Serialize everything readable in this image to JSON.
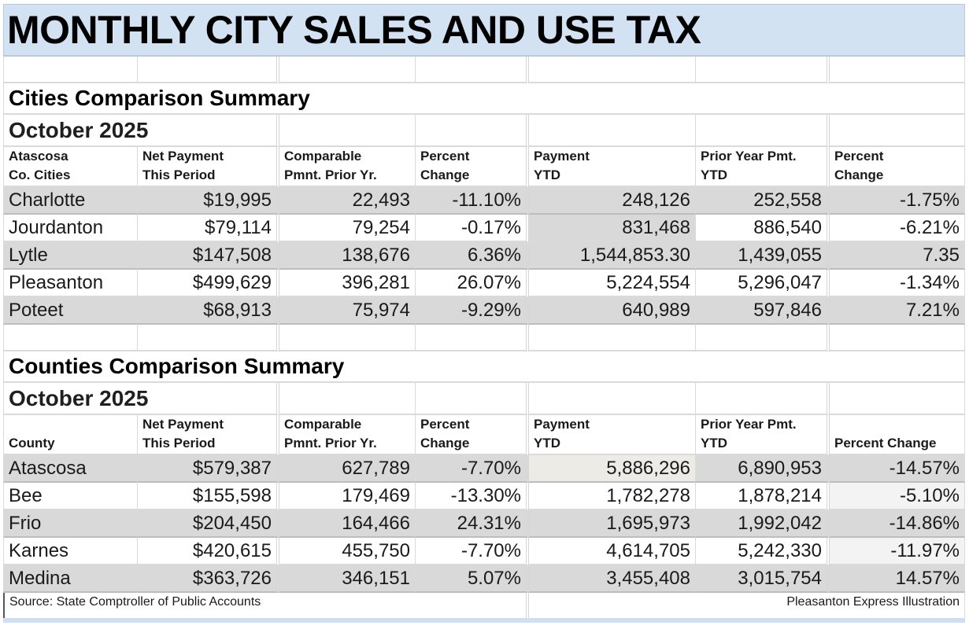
{
  "title": "MONTHLY CITY SALES AND USE TAX",
  "cities": {
    "section_title": "Cities Comparison Summary",
    "period": "October 2025",
    "headers": [
      {
        "line1": "Atascosa",
        "line2": "Co. Cities"
      },
      {
        "line1": "Net Payment",
        "line2": "This Period"
      },
      {
        "line1": "Comparable",
        "line2": "Pmnt. Prior Yr."
      },
      {
        "line1": "Percent",
        "line2": "Change"
      },
      {
        "line1": "Payment",
        "line2": "YTD"
      },
      {
        "line1": "Prior Year Pmt.",
        "line2": "YTD"
      },
      {
        "line1": "Percent",
        "line2": "Change"
      }
    ],
    "rows": [
      {
        "name": "Charlotte",
        "net_payment": "$19,995",
        "prior_payment": "22,493",
        "pct_change": "-11.10%",
        "ytd": "248,126",
        "prior_ytd": "252,558",
        "ytd_pct_change": "-1.75%"
      },
      {
        "name": "Jourdanton",
        "net_payment": "$79,114",
        "prior_payment": "79,254",
        "pct_change": "-0.17%",
        "ytd": "831,468",
        "prior_ytd": "886,540",
        "ytd_pct_change": "-6.21%"
      },
      {
        "name": "Lytle",
        "net_payment": "$147,508",
        "prior_payment": "138,676",
        "pct_change": "6.36%",
        "ytd": "1,544,853.30",
        "prior_ytd": "1,439,055",
        "ytd_pct_change": "7.35"
      },
      {
        "name": "Pleasanton",
        "net_payment": "$499,629",
        "prior_payment": "396,281",
        "pct_change": "26.07%",
        "ytd": "5,224,554",
        "prior_ytd": "5,296,047",
        "ytd_pct_change": "-1.34%"
      },
      {
        "name": "Poteet",
        "net_payment": "$68,913",
        "prior_payment": "75,974",
        "pct_change": "-9.29%",
        "ytd": "640,989",
        "prior_ytd": "597,846",
        "ytd_pct_change": "7.21%"
      }
    ]
  },
  "counties": {
    "section_title": "Counties Comparison Summary",
    "period": "October 2025",
    "headers": [
      {
        "line1": "",
        "line2": "County"
      },
      {
        "line1": "Net Payment",
        "line2": "This Period"
      },
      {
        "line1": "Comparable",
        "line2": "Pmnt. Prior Yr."
      },
      {
        "line1": "Percent",
        "line2": "Change"
      },
      {
        "line1": "Payment",
        "line2": "YTD"
      },
      {
        "line1": "Prior Year Pmt.",
        "line2": "YTD"
      },
      {
        "line1": "",
        "line2": "Percent Change"
      }
    ],
    "rows": [
      {
        "name": "Atascosa",
        "net_payment": "$579,387",
        "prior_payment": "627,789",
        "pct_change": "-7.70%",
        "ytd": "5,886,296",
        "prior_ytd": "6,890,953",
        "ytd_pct_change": "-14.57%"
      },
      {
        "name": "Bee",
        "net_payment": "$155,598",
        "prior_payment": "179,469",
        "pct_change": "-13.30%",
        "ytd": "1,782,278",
        "prior_ytd": "1,878,214",
        "ytd_pct_change": "-5.10%"
      },
      {
        "name": "Frio",
        "net_payment": "$204,450",
        "prior_payment": "164,466",
        "pct_change": "24.31%",
        "ytd": "1,695,973",
        "prior_ytd": "1,992,042",
        "ytd_pct_change": "-14.86%"
      },
      {
        "name": "Karnes",
        "net_payment": "$420,615",
        "prior_payment": "455,750",
        "pct_change": "-7.70%",
        "ytd": "4,614,705",
        "prior_ytd": "5,242,330",
        "ytd_pct_change": "-11.97%"
      },
      {
        "name": "Medina",
        "net_payment": "$363,726",
        "prior_payment": "346,151",
        "pct_change": "5.07%",
        "ytd": "3,455,408",
        "prior_ytd": "3,015,754",
        "ytd_pct_change": "14.57%"
      }
    ]
  },
  "footer": {
    "source": "Source: State Comptroller of Public Accounts",
    "credit": "Pleasanton Express Illustration"
  }
}
